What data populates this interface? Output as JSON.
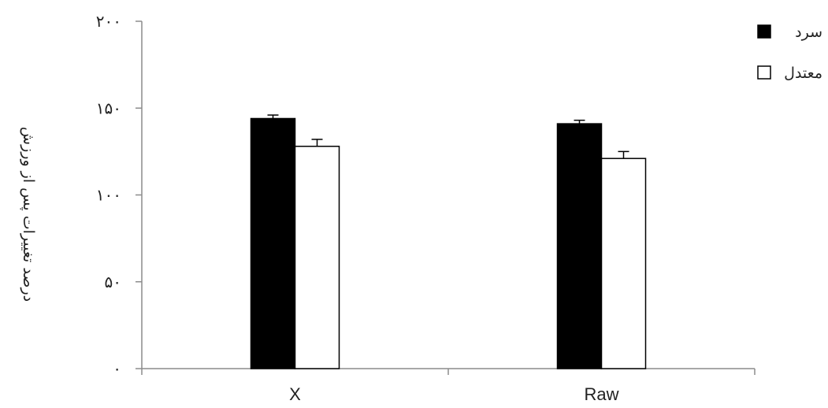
{
  "chart_data": {
    "type": "bar",
    "title": "",
    "xlabel": "",
    "ylabel": "درصد تغییرات پس از ورزش",
    "categories": [
      "X",
      "Raw"
    ],
    "ylim": [
      0,
      200
    ],
    "yticks": [
      0,
      50,
      100,
      150,
      200
    ],
    "ytick_labels": [
      "۰",
      "۵۰",
      "۱۰۰",
      "۱۵۰",
      "۲۰۰"
    ],
    "grid": false,
    "legend_position": "top-right",
    "series": [
      {
        "name": "سرد",
        "color": "#000000",
        "fill": "solid",
        "values": [
          144,
          141
        ],
        "errors": [
          2,
          2
        ]
      },
      {
        "name": "معتدل",
        "color": "#ffffff",
        "fill": "hollow",
        "values": [
          128,
          121
        ],
        "errors": [
          4,
          4
        ]
      }
    ]
  }
}
